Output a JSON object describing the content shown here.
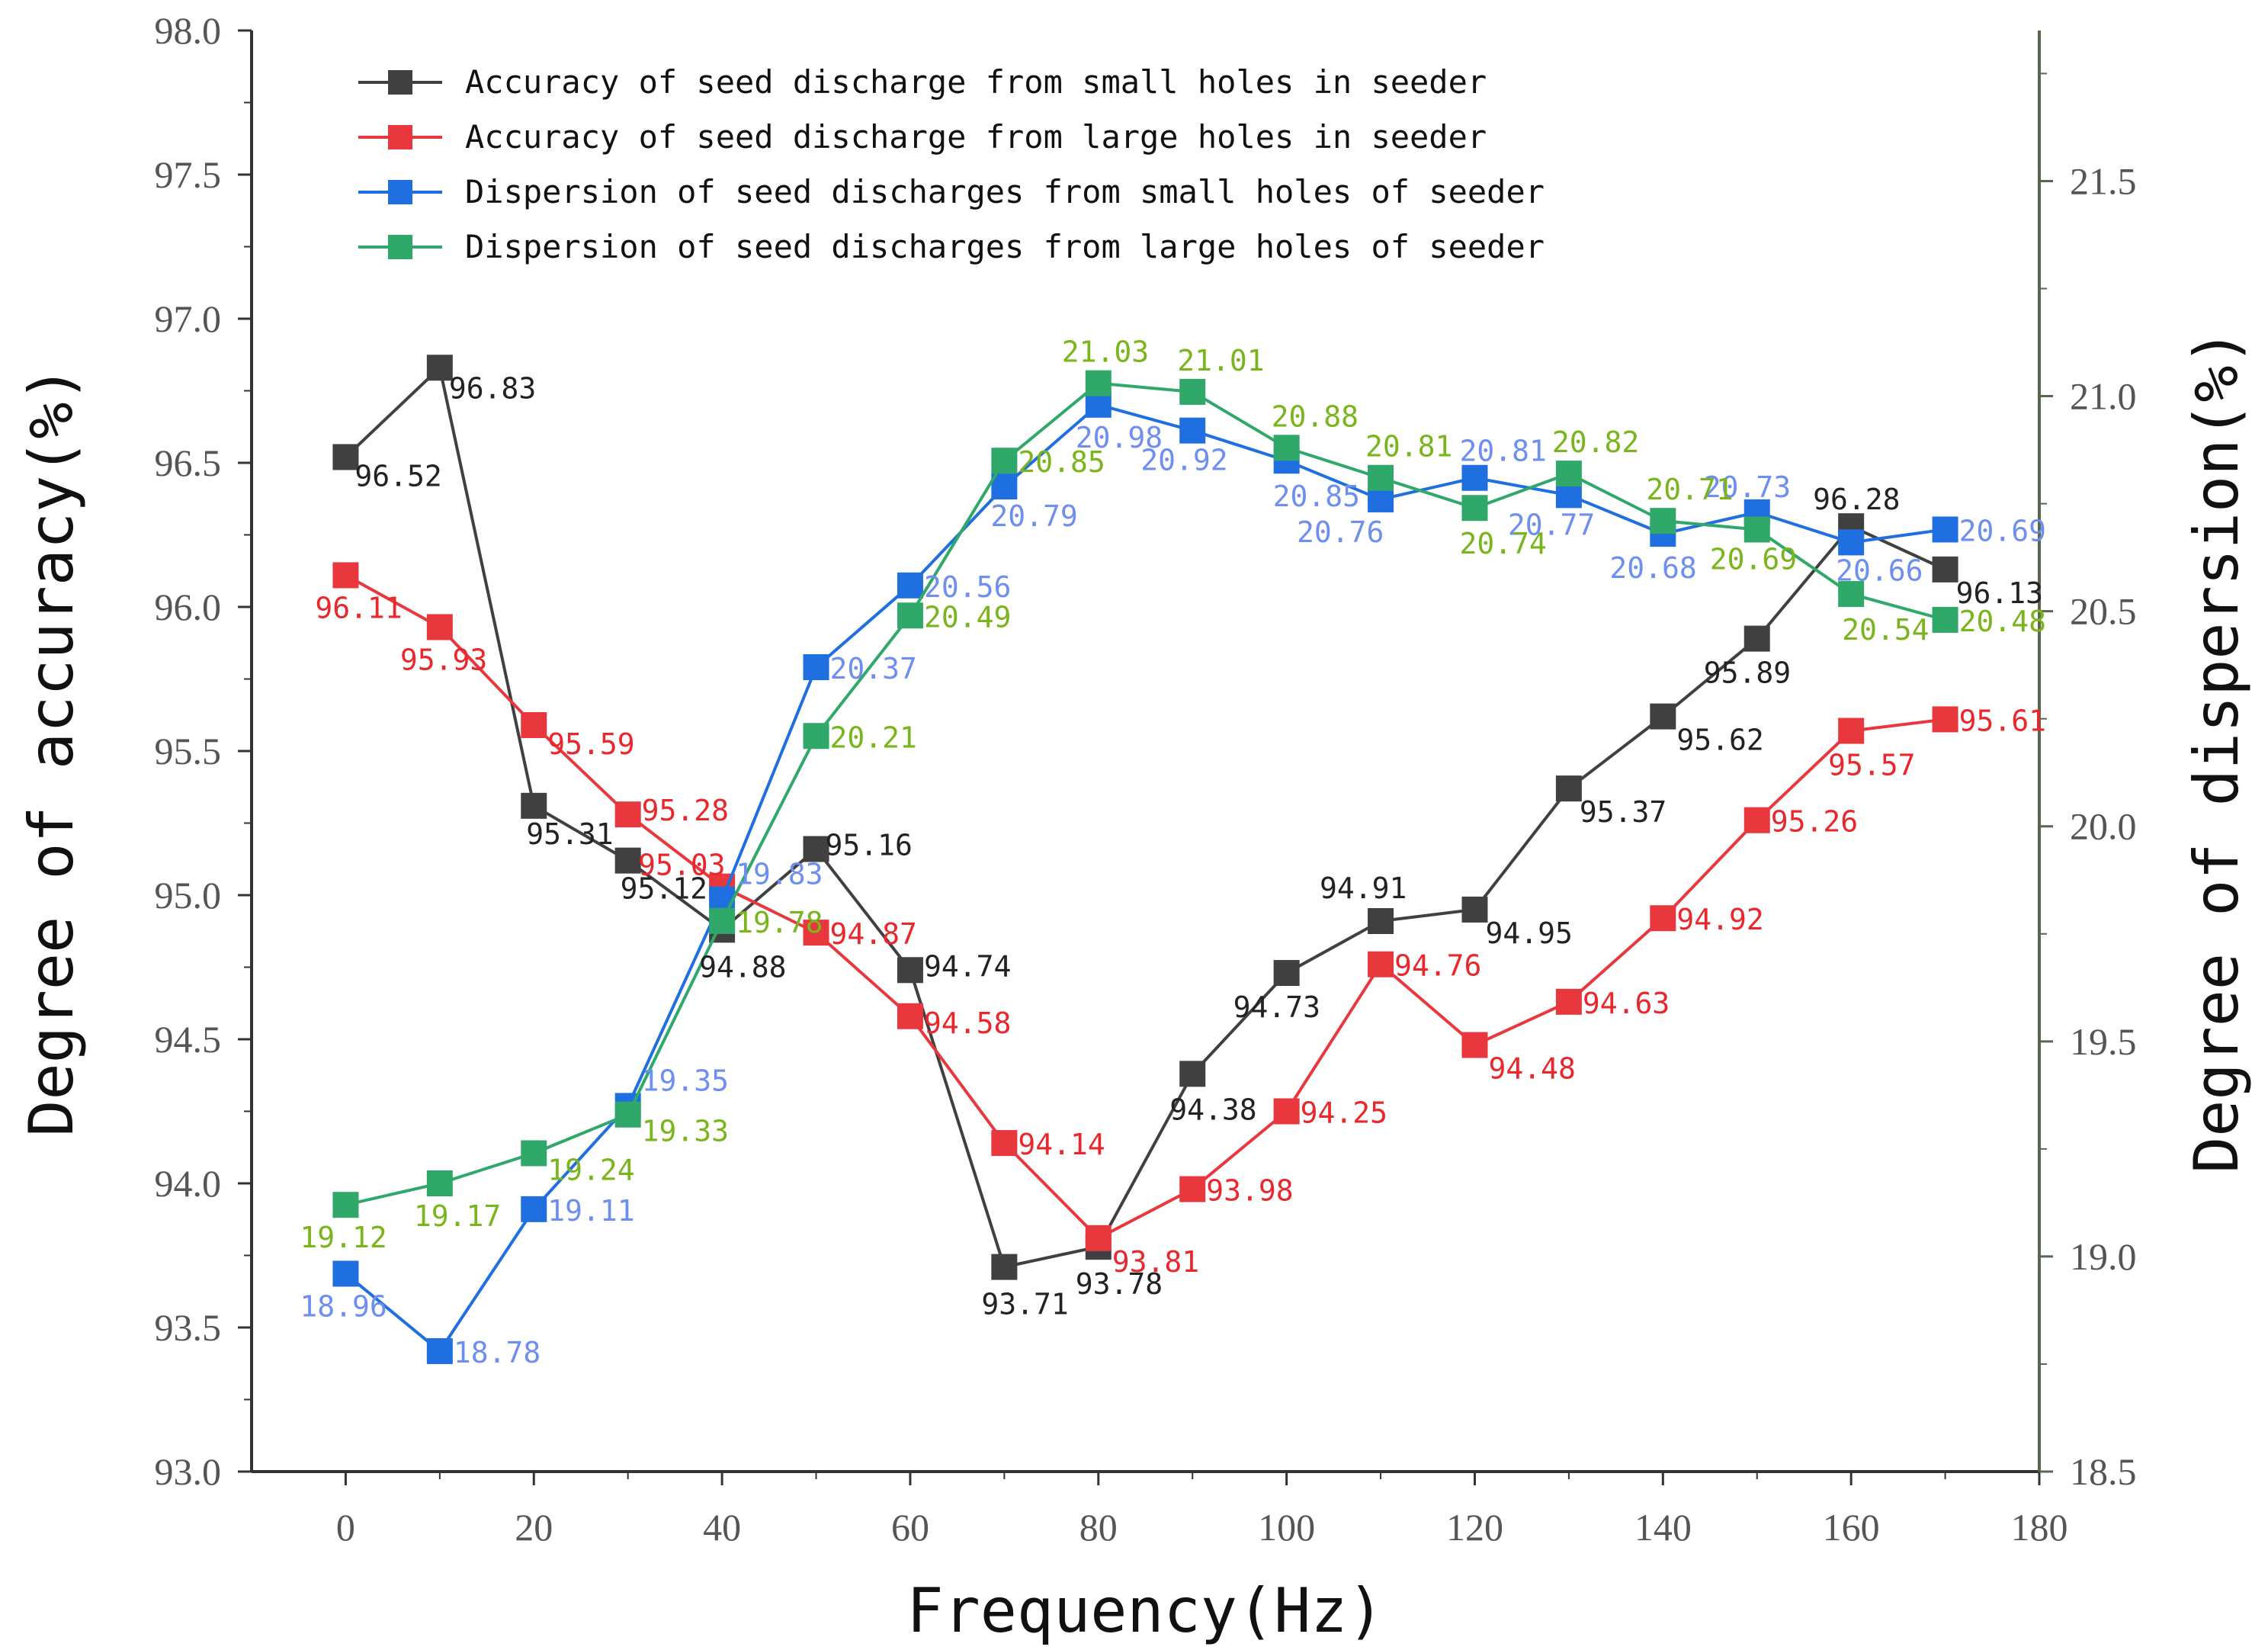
{
  "chart_data": {
    "type": "line",
    "x": [
      0,
      10,
      20,
      30,
      40,
      50,
      60,
      70,
      80,
      90,
      100,
      110,
      120,
      130,
      140,
      150,
      160,
      170
    ],
    "xlabel": "Frequency(Hz)",
    "ylabel_left": "Degree of accuracy(%)",
    "ylabel_right": "Degree of dispersion(%)",
    "xlim": [
      -10,
      180
    ],
    "ylim_left": [
      93.0,
      98.0
    ],
    "ylim_right": [
      18.5,
      21.85
    ],
    "x_ticks": [
      "0",
      "20",
      "40",
      "60",
      "80",
      "100",
      "120",
      "140",
      "160",
      "180"
    ],
    "x_tick_values": [
      0,
      20,
      40,
      60,
      80,
      100,
      120,
      140,
      160,
      180
    ],
    "left_ticks": [
      "93.0",
      "93.5",
      "94.0",
      "94.5",
      "95.0",
      "95.5",
      "96.0",
      "96.5",
      "97.0",
      "97.5",
      "98.0"
    ],
    "left_tick_values": [
      93.0,
      93.5,
      94.0,
      94.5,
      95.0,
      95.5,
      96.0,
      96.5,
      97.0,
      97.5,
      98.0
    ],
    "right_ticks": [
      "18.5",
      "19.0",
      "19.5",
      "20.0",
      "20.5",
      "21.0",
      "21.5"
    ],
    "right_tick_values": [
      18.5,
      19.0,
      19.5,
      20.0,
      20.5,
      21.0,
      21.5
    ],
    "legend_position": "top-left",
    "series": [
      {
        "name": "Accuracy of seed discharge from small holes in seeder",
        "axis": "left",
        "color": "#404040",
        "label_color": "#222222",
        "values": [
          96.52,
          96.83,
          95.31,
          95.12,
          94.88,
          95.16,
          94.74,
          93.71,
          93.78,
          94.38,
          94.73,
          94.91,
          94.95,
          95.37,
          95.62,
          95.89,
          96.28,
          96.13
        ],
        "labels": [
          "96.52",
          "96.83",
          "95.31",
          "95.12",
          "94.88",
          "95.16",
          "94.74",
          "93.71",
          "93.78",
          "94.38",
          "94.73",
          "94.91",
          "94.95",
          "95.37",
          "95.62",
          "95.89",
          "96.28",
          "96.13"
        ]
      },
      {
        "name": "Accuracy of seed discharge from large holes in seeder",
        "axis": "left",
        "color": "#e8383d",
        "label_color": "#e8282d",
        "values": [
          96.11,
          95.93,
          95.59,
          95.28,
          95.03,
          94.87,
          94.58,
          94.14,
          93.81,
          93.98,
          94.25,
          94.76,
          94.48,
          94.63,
          94.92,
          95.26,
          95.57,
          95.61
        ],
        "labels": [
          "96.11",
          "95.93",
          "95.59",
          "95.28",
          "95.03",
          "94.87",
          "94.58",
          "94.14",
          "93.81",
          "93.98",
          "94.25",
          "94.76",
          "94.48",
          "94.63",
          "94.92",
          "95.26",
          "95.57",
          "95.61"
        ]
      },
      {
        "name": "Dispersion of seed discharges from small holes of seeder",
        "axis": "right",
        "color": "#1f6fe0",
        "label_color": "#6f8ff0",
        "values": [
          18.96,
          18.78,
          19.11,
          19.35,
          19.83,
          20.37,
          20.56,
          20.79,
          20.98,
          20.92,
          20.85,
          20.76,
          20.81,
          20.77,
          20.68,
          20.73,
          20.66,
          20.69
        ],
        "labels": [
          "18.96",
          "18.78",
          "19.11",
          "19.35",
          "19.83",
          "20.37",
          "20.56",
          "20.79",
          "20.98",
          "20.92",
          "20.85",
          "20.76",
          "20.81",
          "20.77",
          "20.68",
          "20.73",
          "20.66",
          "20.69"
        ]
      },
      {
        "name": "Dispersion of seed discharges from large holes of seeder",
        "axis": "right",
        "color": "#2fa86a",
        "label_color": "#7ab51d",
        "values": [
          19.12,
          19.17,
          19.24,
          19.33,
          19.78,
          20.21,
          20.49,
          20.85,
          21.03,
          21.01,
          20.88,
          20.81,
          20.74,
          20.82,
          20.71,
          20.69,
          20.54,
          20.48
        ],
        "labels": [
          "19.12",
          "19.17",
          "19.24",
          "19.33",
          "19.78",
          "20.21",
          "20.49",
          "20.85",
          "21.03",
          "21.01",
          "20.88",
          "20.81",
          "20.74",
          "20.82",
          "20.71",
          "20.69",
          "20.54",
          "20.48"
        ]
      }
    ]
  }
}
